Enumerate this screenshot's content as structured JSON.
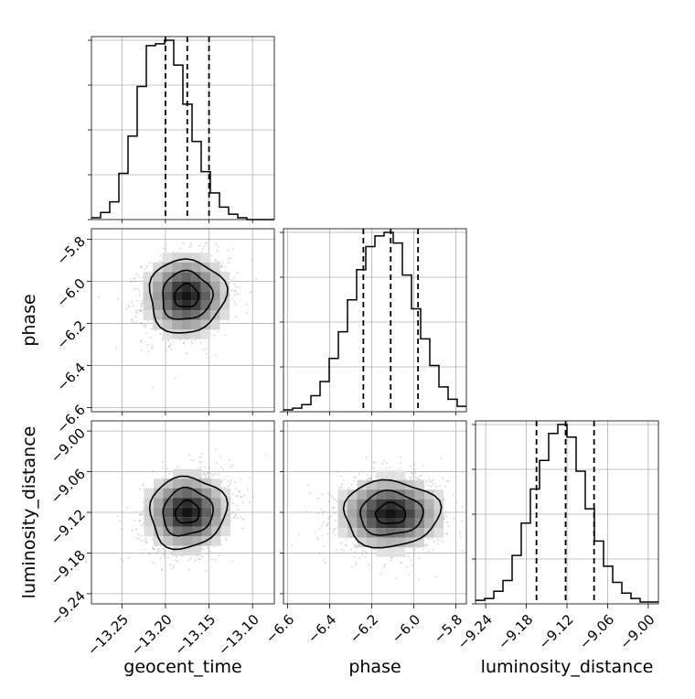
{
  "chart_data": {
    "type": "corner",
    "parameters": [
      "geocent_time",
      "phase",
      "luminosity_distance"
    ],
    "ranges": {
      "geocent_time": [
        -13.285,
        -13.075
      ],
      "phase": [
        -6.62,
        -5.75
      ],
      "luminosity_distance": [
        -9.255,
        -8.985
      ]
    },
    "ticks": {
      "geocent_time": {
        "values": [
          -13.25,
          -13.2,
          -13.15,
          -13.1
        ],
        "labels": [
          "−13.25",
          "−13.20",
          "−13.15",
          "−13.10"
        ]
      },
      "phase": {
        "values": [
          -6.6,
          -6.4,
          -6.2,
          -6.0,
          -5.8
        ],
        "labels": [
          "−6.6",
          "−6.4",
          "−6.2",
          "−6.0",
          "−5.8"
        ]
      },
      "luminosity_distance": {
        "values": [
          -9.24,
          -9.18,
          -9.12,
          -9.06,
          -9.0
        ],
        "labels": [
          "−9.24",
          "−9.18",
          "−9.12",
          "−9.06",
          "−9.00"
        ]
      }
    },
    "quantiles": {
      "geocent_time": [
        -13.2,
        -13.175,
        -13.15
      ],
      "phase": [
        -6.24,
        -6.11,
        -5.98
      ],
      "luminosity_distance": [
        -9.165,
        -9.122,
        -9.08
      ]
    },
    "histograms": {
      "geocent_time": [
        1,
        4,
        10,
        26,
        47,
        75,
        98,
        99,
        101,
        87,
        65,
        44,
        27,
        15,
        7,
        3,
        1,
        0,
        0,
        0
      ],
      "phase": [
        1,
        2,
        4,
        9,
        17,
        30,
        45,
        63,
        80,
        93,
        99,
        101,
        95,
        77,
        58,
        41,
        26,
        14,
        7,
        3
      ],
      "luminosity_distance": [
        2,
        3,
        7,
        13,
        27,
        45,
        64,
        80,
        95,
        100,
        93,
        74,
        53,
        35,
        21,
        12,
        6,
        3,
        1,
        1
      ]
    },
    "pairs": [
      {
        "x": "geocent_time",
        "y": "phase",
        "center": [
          -13.176,
          -6.07
        ],
        "spread": [
          0.025,
          0.1
        ],
        "corr": 0.12
      },
      {
        "x": "geocent_time",
        "y": "luminosity_distance",
        "center": [
          -13.175,
          -9.12
        ],
        "spread": [
          0.025,
          0.03
        ],
        "corr": 0.2
      },
      {
        "x": "phase",
        "y": "luminosity_distance",
        "center": [
          -6.11,
          -9.122
        ],
        "spread": [
          0.13,
          0.028
        ],
        "corr": 0.05
      }
    ],
    "grid": true
  }
}
